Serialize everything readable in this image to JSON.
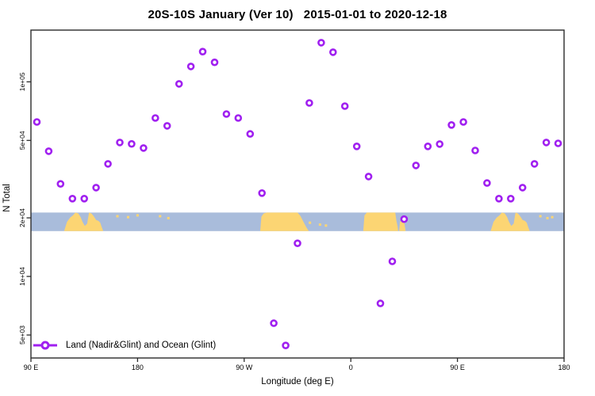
{
  "chart_data": {
    "type": "scatter",
    "title": "20S-10S January (Ver 10)   2015-01-01 to 2020-12-18",
    "xlabel": "Longitude (deg E)",
    "ylabel": "N Total",
    "legend": {
      "label": "Land (Nadir&Glint) and Ocean (Glint)"
    },
    "marker": {
      "shape": "open-circle",
      "color": "#A020F0"
    },
    "x_axis": {
      "note": "longitude axis spans 450 deg starting at 90E and wrapping past 180 and 0",
      "start_deg": 90,
      "end_deg": 540,
      "ticks": [
        {
          "deg": 90,
          "label": "90 E"
        },
        {
          "deg": 180,
          "label": "180"
        },
        {
          "deg": 270,
          "label": "90 W"
        },
        {
          "deg": 360,
          "label": "0"
        },
        {
          "deg": 450,
          "label": "90 E"
        },
        {
          "deg": 540,
          "label": "180"
        }
      ]
    },
    "y_axis": {
      "scale": "log",
      "min": 3800,
      "max": 183000,
      "ticks": [
        {
          "value": 5000,
          "label": "5e+03"
        },
        {
          "value": 10000,
          "label": "1e+04"
        },
        {
          "value": 20000,
          "label": "2e+04"
        },
        {
          "value": 50000,
          "label": "5e+04"
        },
        {
          "value": 100000,
          "label": "1e+05"
        }
      ]
    },
    "points": [
      {
        "deg": 95,
        "n": 62200
      },
      {
        "deg": 105,
        "n": 44000
      },
      {
        "deg": 115,
        "n": 29900
      },
      {
        "deg": 125,
        "n": 25100
      },
      {
        "deg": 135,
        "n": 25100
      },
      {
        "deg": 145,
        "n": 28600
      },
      {
        "deg": 155,
        "n": 37900
      },
      {
        "deg": 165,
        "n": 48800
      },
      {
        "deg": 175,
        "n": 48000
      },
      {
        "deg": 185,
        "n": 45700
      },
      {
        "deg": 195,
        "n": 65200
      },
      {
        "deg": 205,
        "n": 59400
      },
      {
        "deg": 215,
        "n": 97600
      },
      {
        "deg": 225,
        "n": 120000
      },
      {
        "deg": 235,
        "n": 143000
      },
      {
        "deg": 245,
        "n": 126000
      },
      {
        "deg": 255,
        "n": 68300
      },
      {
        "deg": 265,
        "n": 65200
      },
      {
        "deg": 275,
        "n": 54000
      },
      {
        "deg": 285,
        "n": 26800
      },
      {
        "deg": 295,
        "n": 5750
      },
      {
        "deg": 305,
        "n": 4420
      },
      {
        "deg": 315,
        "n": 14800
      },
      {
        "deg": 325,
        "n": 77900
      },
      {
        "deg": 335,
        "n": 159000
      },
      {
        "deg": 345,
        "n": 142000
      },
      {
        "deg": 355,
        "n": 75000
      },
      {
        "deg": 365,
        "n": 46600
      },
      {
        "deg": 375,
        "n": 32600
      },
      {
        "deg": 385,
        "n": 7270
      },
      {
        "deg": 395,
        "n": 11950
      },
      {
        "deg": 405,
        "n": 19700
      },
      {
        "deg": 415,
        "n": 37200
      },
      {
        "deg": 425,
        "n": 46600
      },
      {
        "deg": 435,
        "n": 47900
      },
      {
        "deg": 445,
        "n": 60000
      },
      {
        "deg": 455,
        "n": 62200
      },
      {
        "deg": 465,
        "n": 44400
      },
      {
        "deg": 475,
        "n": 30200
      },
      {
        "deg": 485,
        "n": 25100
      },
      {
        "deg": 495,
        "n": 25100
      },
      {
        "deg": 505,
        "n": 28600
      },
      {
        "deg": 515,
        "n": 37900
      },
      {
        "deg": 525,
        "n": 48800
      },
      {
        "deg": 535,
        "n": 48300
      }
    ],
    "map_band": {
      "description": "latitude-strip world map drawn across the plot",
      "top_value": 21300,
      "bottom_value": 17100,
      "ocean_color": "#A9BCDB",
      "land_color": "#FCD573",
      "land": [
        {
          "name": "australia",
          "poly": [
            [
              118,
              0
            ],
            [
              120.5,
              0.5
            ],
            [
              123,
              0.72
            ],
            [
              125.5,
              0.85
            ],
            [
              127.5,
              1.0
            ],
            [
              130,
              0.95
            ],
            [
              132,
              0.75
            ],
            [
              133.5,
              0.5
            ],
            [
              135.5,
              0.28
            ],
            [
              137.5,
              0.4
            ],
            [
              139,
              1.0
            ],
            [
              141,
              0.95
            ],
            [
              143,
              0.8
            ],
            [
              145,
              0.6
            ],
            [
              147,
              0.55
            ],
            [
              148.5,
              0.45
            ],
            [
              149.5,
              0.25
            ],
            [
              151,
              0
            ]
          ]
        },
        {
          "name": "south-america",
          "poly": [
            [
              283.5,
              0
            ],
            [
              284.5,
              0.78
            ],
            [
              286.5,
              0.95
            ],
            [
              289,
              1.0
            ],
            [
              315,
              1.0
            ],
            [
              317.5,
              0.82
            ],
            [
              320,
              0.5
            ],
            [
              322.5,
              0.2
            ],
            [
              324.5,
              0
            ]
          ]
        },
        {
          "name": "africa",
          "poly": [
            [
              370.5,
              0
            ],
            [
              371.5,
              0.85
            ],
            [
              373.5,
              1.0
            ],
            [
              397.5,
              1.0
            ],
            [
              398.5,
              0.55
            ],
            [
              399.5,
              0.25
            ],
            [
              400,
              0
            ]
          ]
        },
        {
          "name": "madagascar",
          "poly": [
            [
              400.8,
              0
            ],
            [
              401.5,
              0.5
            ],
            [
              403,
              0.62
            ],
            [
              405,
              0.5
            ],
            [
              406.3,
              0
            ]
          ]
        },
        {
          "name": "australia-repeat",
          "poly": [
            [
              478,
              0
            ],
            [
              480.5,
              0.5
            ],
            [
              483,
              0.72
            ],
            [
              485.5,
              0.85
            ],
            [
              487.5,
              1.0
            ],
            [
              490,
              0.95
            ],
            [
              492,
              0.75
            ],
            [
              493.5,
              0.5
            ],
            [
              495.5,
              0.28
            ],
            [
              497.5,
              0.4
            ],
            [
              499,
              1.0
            ],
            [
              501,
              0.95
            ],
            [
              503,
              0.8
            ],
            [
              505,
              0.6
            ],
            [
              507,
              0.55
            ],
            [
              508.5,
              0.45
            ],
            [
              509.5,
              0.25
            ],
            [
              511,
              0
            ]
          ]
        }
      ],
      "islands": [
        [
          163,
          0.8
        ],
        [
          172,
          0.75
        ],
        [
          180,
          0.85
        ],
        [
          199,
          0.8
        ],
        [
          206,
          0.7
        ],
        [
          325.5,
          0.45
        ],
        [
          334,
          0.35
        ],
        [
          339,
          0.3
        ],
        [
          520,
          0.8
        ],
        [
          526,
          0.7
        ],
        [
          530,
          0.75
        ]
      ]
    }
  }
}
